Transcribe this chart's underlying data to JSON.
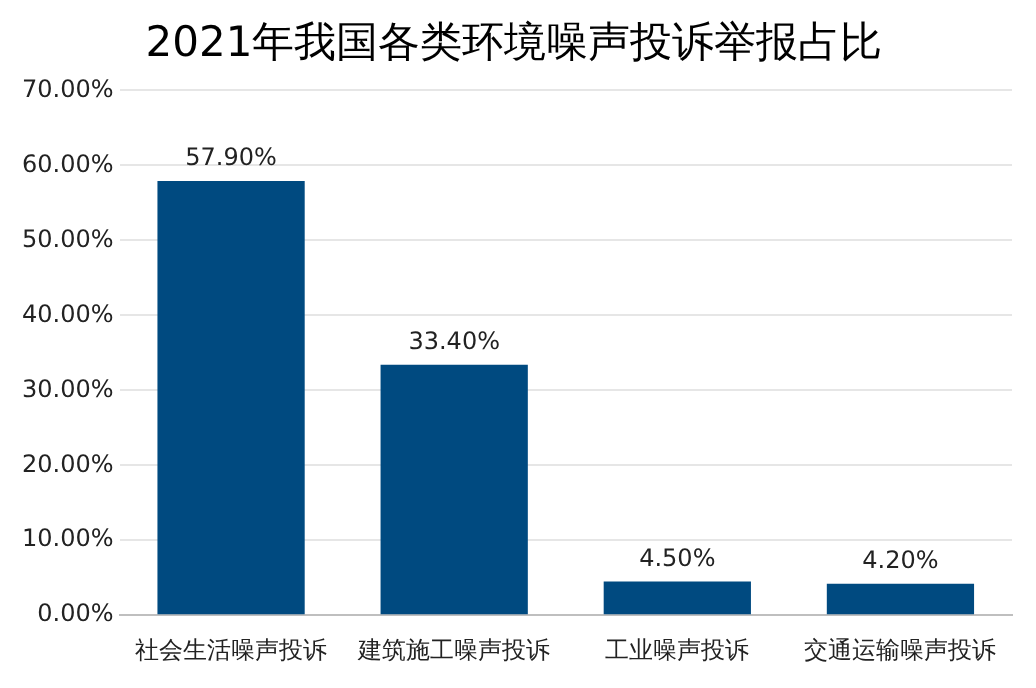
{
  "chart_data": {
    "type": "bar",
    "title": "2021年我国各类环境噪声投诉举报占比",
    "categories": [
      "社会生活噪声投诉",
      "建筑施工噪声投诉",
      "工业噪声投诉",
      "交通运输噪声投诉"
    ],
    "values": [
      57.9,
      33.4,
      4.5,
      4.2
    ],
    "value_labels": [
      "57.90%",
      "33.40%",
      "4.50%",
      "4.20%"
    ],
    "color": "#004a80",
    "ylim": [
      0,
      70
    ],
    "yticks": [
      {
        "value": 0,
        "label": "0.00%"
      },
      {
        "value": 10,
        "label": "10.00%"
      },
      {
        "value": 20,
        "label": "20.00%"
      },
      {
        "value": 30,
        "label": "30.00%"
      },
      {
        "value": 40,
        "label": "40.00%"
      },
      {
        "value": 50,
        "label": "50.00%"
      },
      {
        "value": 60,
        "label": "60.00%"
      },
      {
        "value": 70,
        "label": "70.00%"
      }
    ],
    "grid": "y"
  }
}
